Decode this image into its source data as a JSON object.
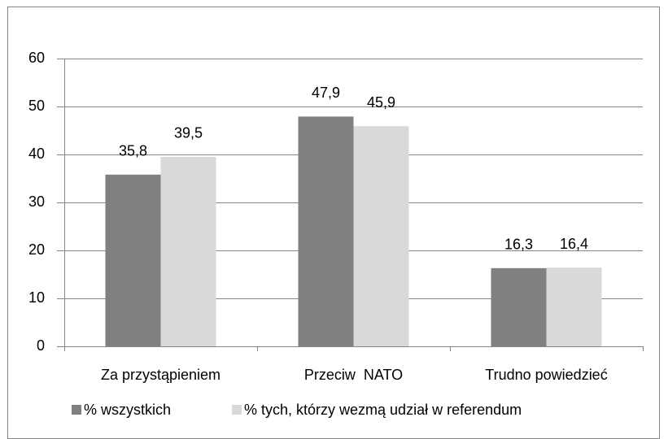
{
  "chart_data": {
    "type": "bar",
    "categories": [
      "Za przystąpieniem",
      "Przeciw  NATO",
      "Trudno powiedzieć"
    ],
    "series": [
      {
        "name": "% wszystkich",
        "color": "#808080",
        "values": [
          35.8,
          47.9,
          16.3
        ],
        "value_labels": [
          "35,8",
          "47,9",
          "16,3"
        ]
      },
      {
        "name": "% tych, którzy wezmą udział w referendum",
        "color": "#d9d9d9",
        "values": [
          39.5,
          45.9,
          16.4
        ],
        "value_labels": [
          "39,5",
          "45,9",
          "16,4"
        ]
      }
    ],
    "ylim": [
      0,
      60
    ],
    "yticks": [
      0,
      10,
      20,
      30,
      40,
      50,
      60
    ],
    "grid": true,
    "legend": "bottom"
  }
}
